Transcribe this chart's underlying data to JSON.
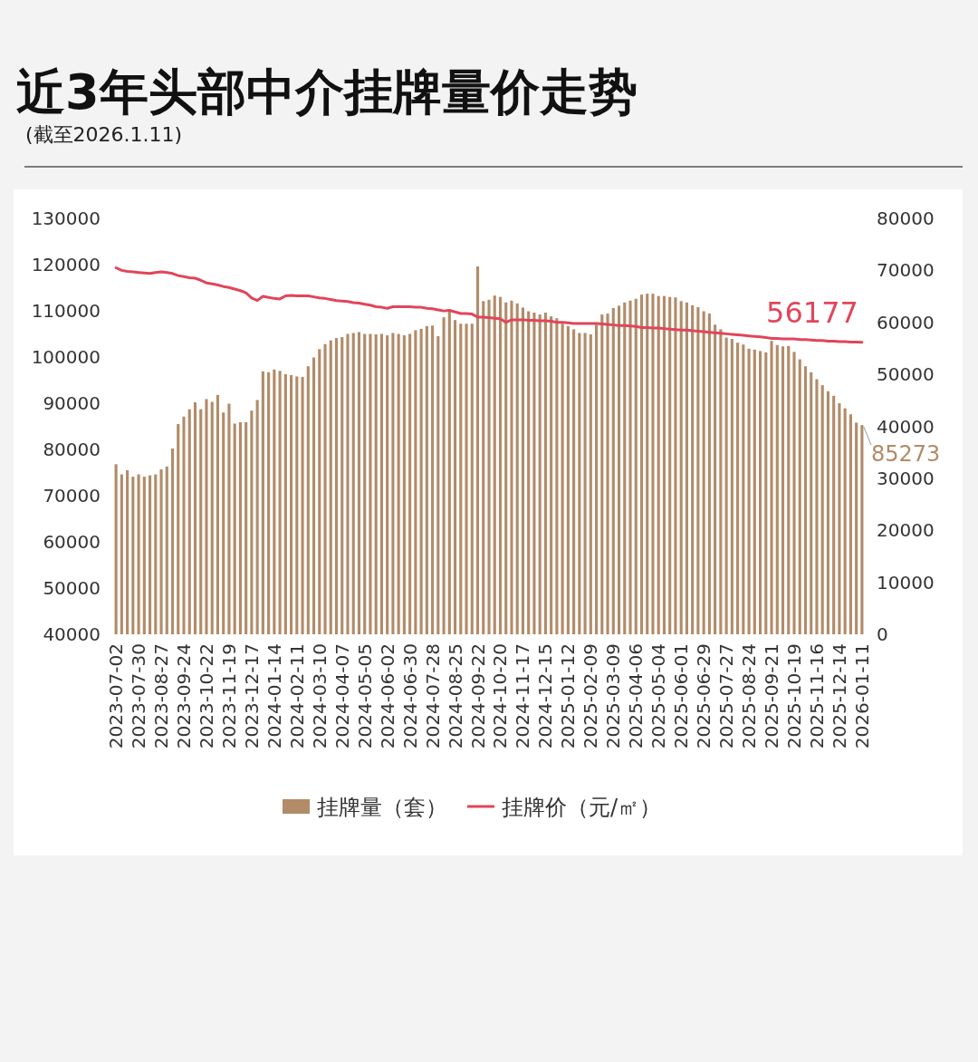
{
  "chart_data": {
    "type": "bar",
    "title": "近3年头部中介挂牌量价走势",
    "subtitle": "(截至2026.1.11)",
    "categories": [
      "2023-07-02",
      null,
      null,
      null,
      "2023-07-30",
      null,
      null,
      null,
      "2023-08-27",
      null,
      null,
      null,
      "2023-09-24",
      null,
      null,
      null,
      "2023-10-22",
      null,
      null,
      null,
      "2023-11-19",
      null,
      null,
      null,
      "2023-12-17",
      null,
      null,
      null,
      "2024-01-14",
      null,
      null,
      null,
      "2024-02-11",
      null,
      null,
      null,
      "2024-03-10",
      null,
      null,
      null,
      "2024-04-07",
      null,
      null,
      null,
      "2024-05-05",
      null,
      null,
      null,
      "2024-06-02",
      null,
      null,
      null,
      "2024-06-30",
      null,
      null,
      null,
      "2024-07-28",
      null,
      null,
      null,
      "2024-08-25",
      null,
      null,
      null,
      "2024-09-22",
      null,
      null,
      null,
      "2024-10-20",
      null,
      null,
      null,
      "2024-11-17",
      null,
      null,
      null,
      "2024-12-15",
      null,
      null,
      null,
      "2025-01-12",
      null,
      null,
      null,
      "2025-02-09",
      null,
      null,
      null,
      "2025-03-09",
      null,
      null,
      null,
      "2025-04-06",
      null,
      null,
      null,
      "2025-05-04",
      null,
      null,
      null,
      "2025-06-01",
      null,
      null,
      null,
      "2025-06-29",
      null,
      null,
      null,
      "2025-07-27",
      null,
      null,
      null,
      "2025-08-24",
      null,
      null,
      null,
      "2025-09-21",
      null,
      null,
      null,
      "2025-10-19",
      null,
      null,
      null,
      "2025-11-16",
      null,
      null,
      null,
      "2025-12-14",
      null,
      null,
      null,
      "2026-01-11"
    ],
    "series": [
      {
        "name": "挂牌量（套）",
        "color": "#b28b68",
        "values": [
          76800,
          74600,
          75500,
          74100,
          74600,
          74100,
          74400,
          74600,
          75700,
          76300,
          80200,
          85500,
          87100,
          88700,
          90200,
          88700,
          90900,
          90300,
          91800,
          88000,
          89900,
          85600,
          85900,
          85900,
          88400,
          90700,
          96900,
          96700,
          97300,
          97000,
          96300,
          96100,
          95800,
          95700,
          98000,
          99900,
          101700,
          102800,
          103600,
          104100,
          104300,
          105000,
          105200,
          105400,
          105000,
          105000,
          104900,
          105000,
          104700,
          105200,
          105000,
          104700,
          105000,
          105800,
          106100,
          106700,
          106800,
          104500,
          108600,
          110300,
          108000,
          107200,
          107200,
          107200,
          119600,
          112100,
          112400,
          113300,
          113000,
          111800,
          112200,
          111600,
          110700,
          109900,
          109600,
          109200,
          109600,
          108800,
          108400,
          107200,
          106700,
          106000,
          105200,
          105200,
          104900,
          107000,
          109200,
          109400,
          110600,
          111100,
          111800,
          112200,
          112600,
          113500,
          113700,
          113700,
          113200,
          113200,
          113000,
          112900,
          112100,
          111800,
          111200,
          110800,
          109900,
          109400,
          107000,
          106000,
          104200,
          103900,
          103100,
          102700,
          101800,
          101600,
          101300,
          101000,
          103500,
          102600,
          102300,
          102400,
          101100,
          99500,
          98000,
          96700,
          95200,
          93900,
          92600,
          91600,
          90000,
          88900,
          87600,
          85800,
          85273
        ],
        "value_labels": [
          null,
          null,
          null,
          null,
          null,
          null,
          null,
          null,
          null,
          null,
          null,
          null,
          null,
          null,
          null,
          null,
          null,
          null,
          null,
          null,
          null,
          null,
          null,
          null,
          null,
          null,
          null,
          null,
          null,
          null,
          null,
          null,
          null,
          null,
          null,
          null,
          null,
          null,
          null,
          null,
          null,
          null,
          null,
          null,
          null,
          null,
          null,
          null,
          null,
          null,
          null,
          null,
          null,
          null,
          null,
          null,
          null,
          null,
          null,
          null,
          null,
          null,
          null,
          null,
          null,
          null,
          null,
          null,
          null,
          null,
          null,
          null,
          null,
          null,
          null,
          null,
          null,
          null,
          null,
          null,
          null,
          null,
          null,
          null,
          null,
          null,
          null,
          null,
          null,
          null,
          null,
          null,
          null,
          null,
          null,
          null,
          null,
          null,
          null,
          null,
          null,
          null,
          null,
          null,
          null,
          null,
          null,
          null,
          null,
          null,
          null,
          null,
          null,
          null,
          null,
          null,
          null,
          null,
          null,
          null,
          null,
          null,
          null,
          null,
          null,
          null,
          null,
          null,
          null,
          null,
          null,
          null,
          "85273"
        ]
      },
      {
        "name": "挂牌价（元/㎡）",
        "type": "line",
        "axis": "y2",
        "color": "#e0465a",
        "values": [
          70500,
          70000,
          69800,
          69700,
          69600,
          69500,
          69400,
          69600,
          69700,
          69600,
          69400,
          69000,
          68800,
          68600,
          68500,
          68100,
          67600,
          67400,
          67200,
          66900,
          66700,
          66400,
          66100,
          65700,
          64700,
          64200,
          65000,
          64800,
          64600,
          64500,
          65100,
          65200,
          65100,
          65100,
          65100,
          64900,
          64700,
          64600,
          64400,
          64200,
          64100,
          64000,
          63800,
          63700,
          63500,
          63300,
          63000,
          62900,
          62700,
          63000,
          63000,
          63000,
          63000,
          62900,
          62900,
          62700,
          62600,
          62400,
          62200,
          62300,
          62000,
          61700,
          61700,
          61600,
          61000,
          61000,
          60900,
          60800,
          60700,
          60000,
          60500,
          60500,
          60500,
          60400,
          60400,
          60300,
          60300,
          60200,
          60000,
          60000,
          59900,
          59800,
          59800,
          59800,
          59800,
          59800,
          59700,
          59600,
          59500,
          59400,
          59400,
          59300,
          59200,
          59000,
          59000,
          58900,
          58900,
          58800,
          58700,
          58600,
          58500,
          58500,
          58400,
          58300,
          58200,
          58100,
          58000,
          57900,
          57800,
          57700,
          57600,
          57500,
          57400,
          57300,
          57200,
          57100,
          56900,
          56900,
          56800,
          56800,
          56800,
          56700,
          56700,
          56600,
          56500,
          56500,
          56400,
          56400,
          56300,
          56300,
          56200,
          56200,
          56177
        ],
        "value_labels": [
          null,
          null,
          null,
          null,
          null,
          null,
          null,
          null,
          null,
          null,
          null,
          null,
          null,
          null,
          null,
          null,
          null,
          null,
          null,
          null,
          null,
          null,
          null,
          null,
          null,
          null,
          null,
          null,
          null,
          null,
          null,
          null,
          null,
          null,
          null,
          null,
          null,
          null,
          null,
          null,
          null,
          null,
          null,
          null,
          null,
          null,
          null,
          null,
          null,
          null,
          null,
          null,
          null,
          null,
          null,
          null,
          null,
          null,
          null,
          null,
          null,
          null,
          null,
          null,
          null,
          null,
          null,
          null,
          null,
          null,
          null,
          null,
          null,
          null,
          null,
          null,
          null,
          null,
          null,
          null,
          null,
          null,
          null,
          null,
          null,
          null,
          null,
          null,
          null,
          null,
          null,
          null,
          null,
          null,
          null,
          null,
          null,
          null,
          null,
          null,
          null,
          null,
          null,
          null,
          null,
          null,
          null,
          null,
          null,
          null,
          null,
          null,
          null,
          null,
          null,
          null,
          null,
          null,
          null,
          null,
          null,
          null,
          null,
          null,
          null,
          null,
          null,
          null,
          null,
          null,
          null,
          null,
          "56177"
        ]
      }
    ],
    "ylim": [
      40000,
      130000
    ],
    "yticks": [
      40000,
      50000,
      60000,
      70000,
      80000,
      90000,
      100000,
      110000,
      120000,
      130000
    ],
    "y2lim": [
      0,
      80000
    ],
    "y2ticks": [
      0,
      10000,
      20000,
      30000,
      40000,
      50000,
      60000,
      70000,
      80000
    ],
    "legend": "bottom"
  }
}
